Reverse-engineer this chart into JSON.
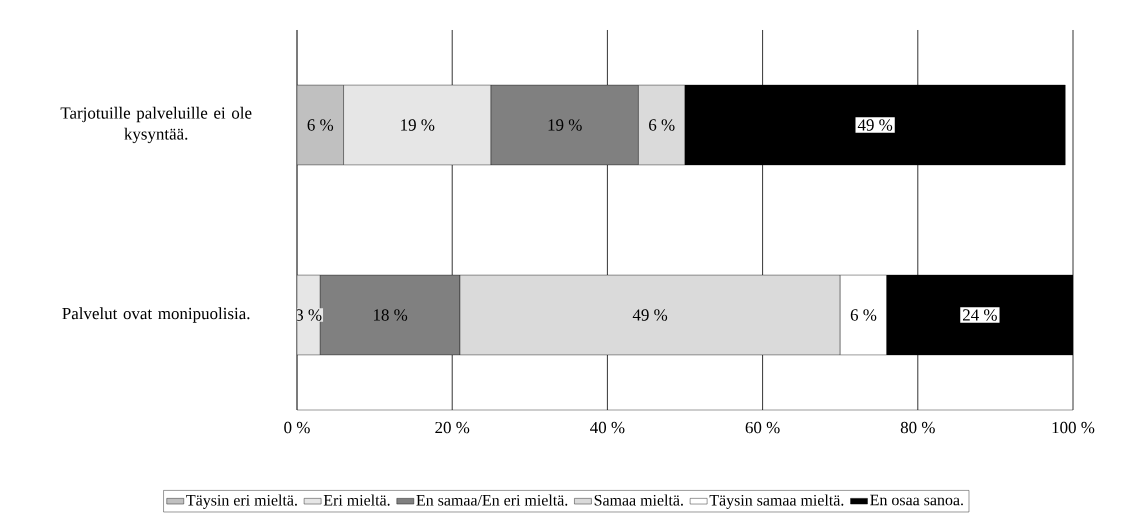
{
  "chart_data": {
    "type": "bar",
    "orientation": "horizontal",
    "stacked": true,
    "categories": [
      "Tarjotuille palveluille ei ole kysyntää.",
      "Palvelut ovat monipuolisia."
    ],
    "series": [
      {
        "name": "Täysin eri mieltä.",
        "color": "#c0c0c0",
        "values": [
          6,
          null
        ],
        "value_labels": [
          "6 %",
          null
        ]
      },
      {
        "name": "Eri mieltä.",
        "color": "#e6e6e6",
        "values": [
          19,
          3
        ],
        "value_labels": [
          "19 %",
          "3 %"
        ]
      },
      {
        "name": "En samaa/En eri mieltä.",
        "color": "#808080",
        "values": [
          19,
          18
        ],
        "value_labels": [
          "19 %",
          "18 %"
        ]
      },
      {
        "name": "Samaa mieltä.",
        "color": "#dadada",
        "values": [
          6,
          49
        ],
        "value_labels": [
          "6 %",
          "49 %"
        ]
      },
      {
        "name": "Täysin samaa mieltä.",
        "color": "#ffffff",
        "values": [
          null,
          6
        ],
        "value_labels": [
          null,
          "6 %"
        ]
      },
      {
        "name": "En osaa sanoa.",
        "color": "#000000",
        "values": [
          49,
          24
        ],
        "value_labels": [
          "49 %",
          "24 %"
        ]
      }
    ],
    "xlim": [
      0,
      100
    ],
    "xticks": [
      {
        "value": 0,
        "label": "0 %"
      },
      {
        "value": 20,
        "label": "20 %"
      },
      {
        "value": 40,
        "label": "40 %"
      },
      {
        "value": 60,
        "label": "60 %"
      },
      {
        "value": 80,
        "label": "80 %"
      },
      {
        "value": 100,
        "label": "100 %"
      }
    ],
    "grid": "x",
    "legend": "bottom"
  }
}
